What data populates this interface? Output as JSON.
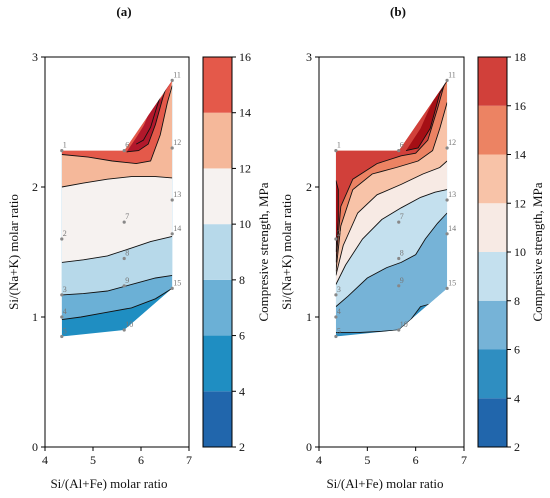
{
  "chart_data": [
    {
      "type": "contour",
      "panel_label": "(a)",
      "xlabel": "Si/(Al+Fe) molar ratio",
      "ylabel": "Si/(Na+K) molar ratio",
      "xlim": [
        4,
        7
      ],
      "ylim": [
        0,
        3
      ],
      "xticks": [
        "4",
        "5",
        "6",
        "7"
      ],
      "yticks": [
        "0",
        "1",
        "2",
        "3"
      ],
      "colorbar": {
        "title": "Compresive strength, MPa",
        "levels": [
          2,
          4,
          6,
          8,
          10,
          12,
          14,
          16
        ],
        "tick_labels": [
          "2",
          "4",
          "6",
          "8",
          "10",
          "12",
          "14",
          "16"
        ],
        "colors": [
          "#2166ac",
          "#1f8ec2",
          "#6bb0d6",
          "#b7d9ea",
          "#f6f2f0",
          "#f5b89a",
          "#e4594a",
          "#b2182b"
        ]
      },
      "points": [
        {
          "label": "1",
          "x": 4.35,
          "y": 2.28
        },
        {
          "label": "2",
          "x": 4.35,
          "y": 1.6
        },
        {
          "label": "3",
          "x": 4.35,
          "y": 1.17
        },
        {
          "label": "4",
          "x": 4.35,
          "y": 1.0
        },
        {
          "label": "5",
          "x": 4.35,
          "y": 0.85
        },
        {
          "label": "6",
          "x": 5.65,
          "y": 2.28
        },
        {
          "label": "7",
          "x": 5.65,
          "y": 1.73
        },
        {
          "label": "8",
          "x": 5.65,
          "y": 1.45
        },
        {
          "label": "9",
          "x": 5.65,
          "y": 1.24
        },
        {
          "label": "10",
          "x": 5.65,
          "y": 0.9
        },
        {
          "label": "11",
          "x": 6.65,
          "y": 2.82
        },
        {
          "label": "12",
          "x": 6.65,
          "y": 2.3
        },
        {
          "label": "13",
          "x": 6.65,
          "y": 1.9
        },
        {
          "label": "14",
          "x": 6.65,
          "y": 1.64
        },
        {
          "label": "15",
          "x": 6.65,
          "y": 1.22
        }
      ]
    },
    {
      "type": "contour",
      "panel_label": "(b)",
      "xlabel": "Si/(Al+Fe) molar ratio",
      "ylabel": "Si/(Na+K) molar ratio",
      "xlim": [
        4,
        7
      ],
      "ylim": [
        0,
        3
      ],
      "xticks": [
        "4",
        "5",
        "6",
        "7"
      ],
      "yticks": [
        "0",
        "1",
        "2",
        "3"
      ],
      "colorbar": {
        "title": "Compresive strength, MPa",
        "levels": [
          2,
          4,
          6,
          8,
          10,
          12,
          14,
          16,
          18
        ],
        "tick_labels": [
          "2",
          "4",
          "6",
          "8",
          "10",
          "12",
          "14",
          "16",
          "18"
        ],
        "colors": [
          "#2166ac",
          "#2f8ec1",
          "#76b3d7",
          "#c4e0ee",
          "#f7eae4",
          "#f8c3a8",
          "#ec8363",
          "#d1403a",
          "#a50f15"
        ]
      },
      "points": [
        {
          "label": "1",
          "x": 4.35,
          "y": 2.28
        },
        {
          "label": "2",
          "x": 4.35,
          "y": 1.6
        },
        {
          "label": "3",
          "x": 4.35,
          "y": 1.17
        },
        {
          "label": "4",
          "x": 4.35,
          "y": 1.0
        },
        {
          "label": "5",
          "x": 4.35,
          "y": 0.85
        },
        {
          "label": "6",
          "x": 5.65,
          "y": 2.28
        },
        {
          "label": "7",
          "x": 5.65,
          "y": 1.73
        },
        {
          "label": "8",
          "x": 5.65,
          "y": 1.45
        },
        {
          "label": "9",
          "x": 5.65,
          "y": 1.24
        },
        {
          "label": "10",
          "x": 5.65,
          "y": 0.9
        },
        {
          "label": "11",
          "x": 6.65,
          "y": 2.82
        },
        {
          "label": "12",
          "x": 6.65,
          "y": 2.3
        },
        {
          "label": "13",
          "x": 6.65,
          "y": 1.9
        },
        {
          "label": "14",
          "x": 6.65,
          "y": 1.64
        },
        {
          "label": "15",
          "x": 6.65,
          "y": 1.22
        }
      ]
    }
  ]
}
